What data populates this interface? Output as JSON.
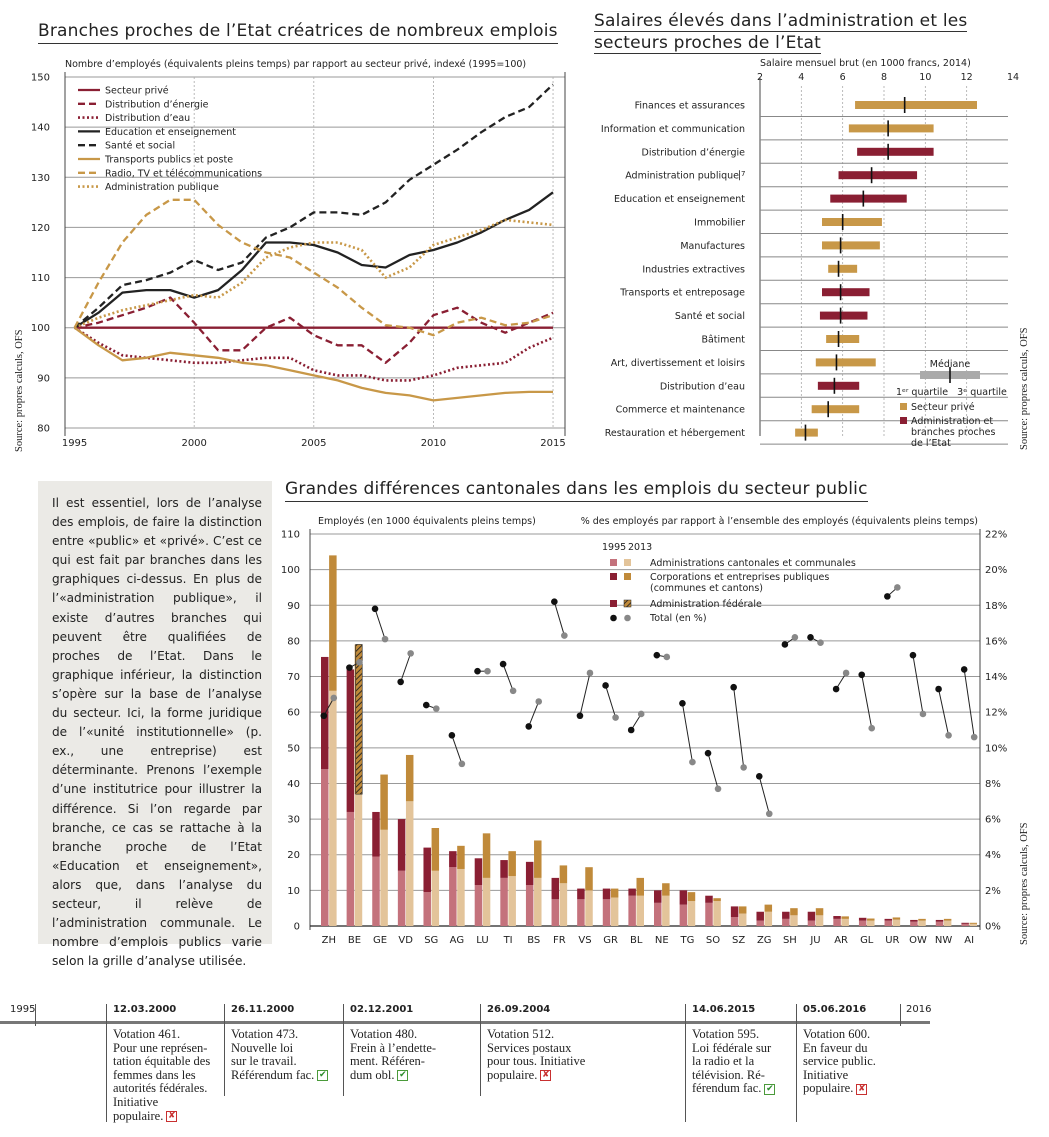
{
  "chart_data": [
    {
      "type": "line",
      "title": "Branches proches de l’Etat créatrices de nombreux emplois",
      "ylabel": "Nombre d’employés (équivalents pleins temps) par rapport au secteur privé, indexé (1995=100)",
      "source": "Source: propres calculs, OFS",
      "xlim": [
        1994.6,
        2015.5
      ],
      "ylim": [
        80,
        150
      ],
      "yticks": [
        80,
        90,
        100,
        110,
        120,
        130,
        140,
        150
      ],
      "xticks": [
        1995,
        2000,
        2005,
        2010,
        2015
      ],
      "x": [
        1995,
        1996,
        1997,
        1998,
        1999,
        2000,
        2001,
        2002,
        2003,
        2004,
        2005,
        2006,
        2007,
        2008,
        2009,
        2010,
        2011,
        2012,
        2013,
        2014,
        2015
      ],
      "series": [
        {
          "name": "Secteur privé",
          "color": "#8a1f33",
          "dash": "solid",
          "values": [
            100,
            100,
            100,
            100,
            100,
            100,
            100,
            100,
            100,
            100,
            100,
            100,
            100,
            100,
            100,
            100,
            100,
            100,
            100,
            100,
            100
          ]
        },
        {
          "name": "Distribution d’énergie",
          "color": "#8a1f33",
          "dash": "dashed",
          "values": [
            100,
            101,
            102.5,
            104,
            106,
            101,
            95.5,
            95.5,
            100,
            102,
            98.5,
            96.5,
            96.5,
            93,
            97,
            102.5,
            104,
            101,
            99,
            101,
            103
          ]
        },
        {
          "name": "Distribution d’eau",
          "color": "#8a1f33",
          "dash": "dotted",
          "values": [
            100,
            97,
            94.5,
            94,
            93.5,
            93,
            93,
            93.5,
            94,
            94,
            91.5,
            90.5,
            90.5,
            89.5,
            89.5,
            90.5,
            92,
            92.5,
            93,
            96,
            98
          ]
        },
        {
          "name": "Education et enseignement",
          "color": "#222222",
          "dash": "solid",
          "values": [
            100,
            103,
            107,
            107.5,
            107.5,
            106,
            107.5,
            111.5,
            117,
            117,
            116.5,
            115,
            112.5,
            112,
            114.5,
            115.5,
            117,
            119,
            121.5,
            123.5,
            127
          ]
        },
        {
          "name": "Santé et social",
          "color": "#222222",
          "dash": "dashed",
          "values": [
            100,
            104,
            108.5,
            109.5,
            111,
            113.5,
            111.5,
            113,
            118,
            120,
            123,
            123,
            122.5,
            125,
            129.5,
            132.5,
            135.5,
            139,
            142,
            144,
            148.5
          ]
        },
        {
          "name": "Transports publics et poste",
          "color": "#c89848",
          "dash": "solid",
          "values": [
            100,
            96.5,
            93.5,
            94,
            95,
            94.5,
            94,
            93,
            92.5,
            91.5,
            90.5,
            89.5,
            88,
            87,
            86.5,
            85.5,
            86,
            86.5,
            87,
            87.2,
            87.2
          ]
        },
        {
          "name": "Radio, TV et télécommunications",
          "color": "#c89848",
          "dash": "dashed",
          "values": [
            100,
            109,
            117,
            122.5,
            125.5,
            125.5,
            120.5,
            117,
            115,
            114,
            111,
            108,
            104,
            100.5,
            100,
            98.5,
            101,
            102,
            100.5,
            101,
            102.5
          ]
        },
        {
          "name": "Administration publique",
          "color": "#c89848",
          "dash": "dotted",
          "values": [
            100,
            102,
            103.5,
            104.5,
            105.5,
            106.5,
            106,
            109,
            114,
            116,
            117,
            117,
            115.5,
            110,
            112,
            116.5,
            118,
            119.5,
            121.5,
            121,
            120.5
          ]
        }
      ]
    },
    {
      "type": "bar",
      "subtype": "range",
      "title": "Salaires élevés dans l’administration et les secteurs proches de l’Etat",
      "xlabel": "Salaire mensuel brut (en 1000 francs, 2014)",
      "source": "Source: propres calculs, OFS",
      "xlim": [
        2,
        14
      ],
      "xticks": [
        2,
        4,
        6,
        8,
        10,
        12,
        14
      ],
      "categories": [
        "Finances et assurances",
        "Information et communication",
        "Distribution d’énergie",
        "Administration publique",
        "Education et enseignement",
        "Immobilier",
        "Manufactures",
        "Industries extractives",
        "Transports et entreposage",
        "Santé et social",
        "Bâtiment",
        "Art, divertissement et loisirs",
        "Distribution d’eau",
        "Commerce et maintenance",
        "Restauration et hébergement"
      ],
      "category_superscript": {
        "Administration publique": "7"
      },
      "sector": [
        "private",
        "private",
        "public",
        "public",
        "public",
        "private",
        "private",
        "private",
        "public",
        "public",
        "private",
        "private",
        "public",
        "private",
        "private"
      ],
      "q1": [
        6.6,
        6.3,
        6.7,
        5.8,
        5.4,
        5.0,
        5.0,
        5.3,
        5.0,
        4.9,
        5.2,
        4.7,
        4.8,
        4.5,
        3.7
      ],
      "median": [
        9.0,
        8.2,
        8.2,
        7.4,
        7.0,
        6.0,
        5.9,
        5.8,
        5.9,
        5.9,
        5.8,
        5.7,
        5.6,
        5.3,
        4.2
      ],
      "q3": [
        12.5,
        10.4,
        10.4,
        9.6,
        9.1,
        7.9,
        7.8,
        6.7,
        7.3,
        7.2,
        6.8,
        7.6,
        6.8,
        6.8,
        4.8
      ],
      "legend": {
        "median": "Médiane",
        "q1": "1ᵉʳ quartile",
        "q3": "3ᵉ quartile",
        "private": "Secteur privé",
        "public": "Administration et branches proches de l’Etat"
      },
      "colors": {
        "private": "#c89848",
        "public": "#8a1f33"
      }
    },
    {
      "type": "bar",
      "subtype": "stacked-paired",
      "title": "Grandes différences cantonales dans les emplois du secteur public",
      "ylabel": "Employés (en 1000 équivalents pleins temps)",
      "y2label": "% des employés par rapport à l’ensemble des employés (équivalents pleins temps)",
      "source": "Source: propres calculs, OFS",
      "ylim": [
        0,
        110
      ],
      "yticks": [
        0,
        10,
        20,
        30,
        40,
        50,
        60,
        70,
        80,
        90,
        100,
        110
      ],
      "y2lim": [
        0,
        22
      ],
      "y2ticks": [
        0,
        2,
        4,
        6,
        8,
        10,
        12,
        14,
        16,
        18,
        20,
        22
      ],
      "categories": [
        "ZH",
        "BE",
        "GE",
        "VD",
        "SG",
        "AG",
        "LU",
        "TI",
        "BS",
        "FR",
        "VS",
        "GR",
        "BL",
        "NE",
        "TG",
        "SO",
        "SZ",
        "ZG",
        "SH",
        "JU",
        "AR",
        "GL",
        "UR",
        "OW",
        "NW",
        "AI"
      ],
      "year_labels": [
        "1995",
        "2013"
      ],
      "series": [
        {
          "name": "Administrations cantonales et communales",
          "color1995": "#c4727c",
          "color2013": "#e3c49a",
          "values1995": [
            44,
            32,
            19.5,
            15.5,
            9.5,
            16.5,
            11.5,
            13.5,
            11.5,
            7.5,
            7.5,
            7.5,
            8.5,
            6.5,
            6,
            6.5,
            2.5,
            1.5,
            2,
            1.5,
            2,
            1.5,
            1.5,
            1.2,
            1.2,
            0.6
          ],
          "values2013": [
            66,
            37,
            27,
            35,
            15.5,
            16,
            13.5,
            14,
            13.5,
            12,
            10,
            8,
            8.5,
            8.5,
            7,
            7,
            3.5,
            4,
            3,
            3,
            2,
            1.5,
            1.8,
            1.5,
            1.5,
            0.6
          ]
        },
        {
          "name": "Corporations et entreprises publiques (communes et cantons)",
          "color1995": "#8a1f33",
          "color2013": "#c08a3a",
          "values1995": [
            31.5,
            40,
            12.5,
            14.5,
            12.5,
            4.5,
            7.5,
            5,
            6.5,
            6,
            3,
            3,
            2,
            3.5,
            4,
            2,
            3,
            2.5,
            2,
            2.5,
            0.8,
            0.8,
            0.5,
            0.5,
            0.5,
            0.3
          ],
          "values2013": [
            38,
            42,
            15.5,
            13,
            12,
            6.5,
            12.5,
            7,
            10.5,
            5,
            6.5,
            2.5,
            5,
            3.5,
            2.5,
            0.8,
            2,
            2,
            2,
            2,
            0.7,
            0.6,
            0.6,
            0.5,
            0.5,
            0.3
          ]
        },
        {
          "name": "Administration fédérale",
          "color": "#8a1f33",
          "hatch": true,
          "values1995": [
            0,
            0,
            0,
            0,
            0,
            0,
            0,
            0,
            0,
            0,
            0,
            0,
            0,
            0,
            0,
            0,
            0,
            0,
            0,
            0,
            0,
            0,
            0,
            0,
            0,
            0
          ],
          "values2013": [
            0,
            0.5,
            0,
            0,
            0,
            0,
            0,
            0,
            0,
            0,
            0,
            0,
            0,
            0,
            0,
            0,
            0,
            0,
            0,
            0,
            0,
            0,
            0,
            0,
            0,
            0
          ],
          "overlay2013": {
            "BE": [
              37,
              79
            ]
          }
        },
        {
          "name": "Total (en %)",
          "unit": "%",
          "values1995": [
            11.8,
            14.5,
            17.8,
            13.7,
            12.4,
            10.7,
            14.3,
            14.7,
            11.2,
            18.2,
            11.8,
            13.5,
            11.0,
            15.2,
            12.5,
            9.7,
            13.4,
            8.4,
            15.8,
            16.2,
            13.3,
            14.1,
            18.5,
            15.2,
            13.3,
            14.4
          ],
          "values2013": [
            12.8,
            14.8,
            16.1,
            15.3,
            12.2,
            9.1,
            14.3,
            13.2,
            12.6,
            16.3,
            14.2,
            11.7,
            11.9,
            15.1,
            9.2,
            7.7,
            8.9,
            6.3,
            16.2,
            15.9,
            14.2,
            11.1,
            19.0,
            11.9,
            10.7,
            10.6
          ]
        }
      ]
    }
  ],
  "text_block": "Il est essentiel, lors de l’analyse des emplois, de faire la distinction entre «public» et «privé». C’est ce qui est fait par branches dans les graphiques ci-dessus. En plus de l’«administration publique», il existe d’autres branches qui peuvent être qualifiées de proches de l’Etat. Dans le graphique inférieur, la distinction s’opère sur la base de l’analyse du secteur. Ici, la forme juridique de l’«unité institutionnelle» (p. ex., une entreprise) est déterminante. Prenons l’exemple d’une institutrice pour illustrer la différence. Si l’on regarde par branche, ce cas se rattache à la branche proche de l’Etat «Education et enseignement», alors que, dans l’analyse du secteur, il relève de l’administration communale. Le nombre d’emplois publics varie selon la grille d’analyse utilisée.",
  "timeline": {
    "start": "1995",
    "end": "2016",
    "events": [
      {
        "date": "12.03.2000",
        "text": "Votation 461.\nPour une représen-\ntation équitable des\nfemmes dans les\nautorités fédérales.\nInitiative\npopulaire.",
        "result": "rejected",
        "result_mark": "✘"
      },
      {
        "date": "26.11.2000",
        "text": "Votation 473.\nNouvelle loi\nsur le travail.\nRéférendum fac.",
        "result": "accepted",
        "result_mark": "✔"
      },
      {
        "date": "02.12.2001",
        "text": "Votation 480.\nFrein à l’endette-\nment. Référen-\ndum obl.",
        "result": "accepted",
        "result_mark": "✔"
      },
      {
        "date": "26.09.2004",
        "text": "Votation 512.\nServices postaux\npour tous. Initiative\npopulaire.",
        "result": "rejected",
        "result_mark": "✘"
      },
      {
        "date": "14.06.2015",
        "text": "Votation 595.\nLoi fédérale sur\nla radio et la\ntélévision. Ré-\nférendum fac.",
        "result": "accepted",
        "result_mark": "✔"
      },
      {
        "date": "05.06.2016",
        "text": "Votation 600.\nEn faveur du\nservice public.\nInitiative\npopulaire.",
        "result": "rejected",
        "result_mark": "✘"
      }
    ]
  }
}
